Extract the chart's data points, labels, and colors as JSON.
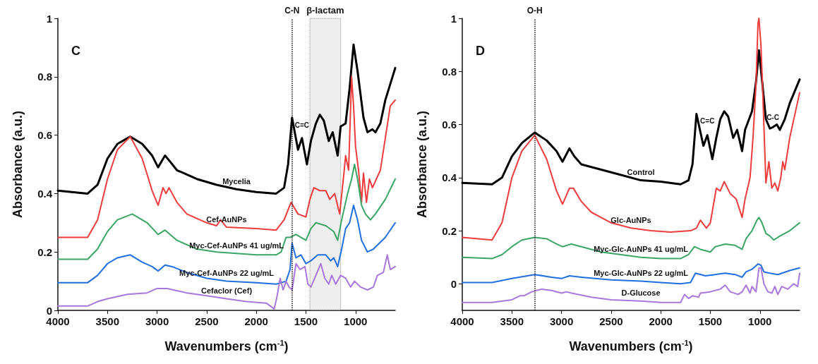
{
  "chart_data": [
    {
      "type": "line",
      "title": "C",
      "xlabel": "Wavenumbers (cm$^{-1}$)",
      "ylabel": "Absorbance (a.u.)",
      "xlim": [
        4000,
        600
      ],
      "xticks": [
        4000,
        3500,
        3000,
        2500,
        2000,
        1500,
        1000
      ],
      "ylim": [
        0,
        1
      ],
      "yticks": [
        0,
        0.2,
        0.4,
        0.6,
        0.8,
        1
      ],
      "grid": false,
      "legend": false,
      "marker": "none",
      "line_style": "solid",
      "ref_lines": [
        {
          "axis": "x",
          "value": 1640,
          "label": "C-N",
          "line_style": "dotted"
        }
      ],
      "bands": [
        {
          "axis": "x",
          "from": 1460,
          "to": 1150,
          "label": "β-lactam",
          "color": "#d9d9d9"
        }
      ],
      "annotations": [
        {
          "text": "C=C",
          "x": 1540,
          "y": 0.6
        }
      ],
      "series": [
        {
          "name": "Mycelia",
          "color": "#000000",
          "x": [
            4000,
            3700,
            3600,
            3500,
            3400,
            3270,
            3150,
            3050,
            2990,
            2920,
            2870,
            2800,
            2600,
            2400,
            2200,
            2000,
            1800,
            1720,
            1680,
            1640,
            1580,
            1540,
            1490,
            1450,
            1400,
            1360,
            1320,
            1270,
            1230,
            1180,
            1150,
            1100,
            1060,
            1020,
            980,
            920,
            880,
            830,
            800,
            750,
            700,
            600
          ],
          "values": [
            0.41,
            0.4,
            0.43,
            0.52,
            0.57,
            0.595,
            0.57,
            0.53,
            0.49,
            0.53,
            0.51,
            0.48,
            0.45,
            0.43,
            0.415,
            0.405,
            0.4,
            0.42,
            0.5,
            0.66,
            0.55,
            0.59,
            0.5,
            0.58,
            0.64,
            0.67,
            0.65,
            0.58,
            0.61,
            0.53,
            0.63,
            0.64,
            0.76,
            0.91,
            0.82,
            0.66,
            0.61,
            0.62,
            0.61,
            0.64,
            0.72,
            0.83
          ]
        },
        {
          "name": "Cef-AuNPs",
          "color": "#ee3b3b",
          "x": [
            4000,
            3700,
            3600,
            3500,
            3400,
            3270,
            3150,
            3050,
            2990,
            2940,
            2910,
            2880,
            2800,
            2700,
            2500,
            2400,
            2360,
            2300,
            2000,
            1800,
            1720,
            1650,
            1580,
            1500,
            1460,
            1420,
            1360,
            1300,
            1260,
            1210,
            1160,
            1120,
            1100,
            1070,
            1040,
            1020,
            1000,
            970,
            940,
            920,
            890,
            860,
            830,
            750,
            650,
            600
          ],
          "values": [
            0.25,
            0.25,
            0.31,
            0.45,
            0.55,
            0.595,
            0.52,
            0.41,
            0.36,
            0.42,
            0.4,
            0.42,
            0.37,
            0.33,
            0.3,
            0.29,
            0.31,
            0.285,
            0.28,
            0.275,
            0.31,
            0.37,
            0.33,
            0.32,
            0.38,
            0.42,
            0.41,
            0.41,
            0.38,
            0.4,
            0.33,
            0.46,
            0.53,
            0.48,
            0.8,
            0.7,
            0.56,
            0.48,
            0.37,
            0.47,
            0.37,
            0.45,
            0.42,
            0.48,
            0.7,
            0.72
          ]
        },
        {
          "name": "Myc-Cef-AuNPs 41 ug/mL",
          "color": "#3aa564",
          "x": [
            4000,
            3700,
            3600,
            3500,
            3400,
            3250,
            3100,
            2990,
            2920,
            2800,
            2600,
            2400,
            2200,
            2000,
            1800,
            1750,
            1700,
            1660,
            1600,
            1500,
            1450,
            1400,
            1300,
            1220,
            1180,
            1140,
            1080,
            1040,
            1010,
            980,
            940,
            900,
            850,
            800,
            700,
            600
          ],
          "values": [
            0.175,
            0.175,
            0.21,
            0.27,
            0.31,
            0.33,
            0.3,
            0.26,
            0.275,
            0.24,
            0.21,
            0.2,
            0.195,
            0.19,
            0.19,
            0.2,
            0.25,
            0.25,
            0.26,
            0.24,
            0.28,
            0.3,
            0.29,
            0.27,
            0.24,
            0.31,
            0.4,
            0.45,
            0.5,
            0.45,
            0.36,
            0.33,
            0.31,
            0.33,
            0.38,
            0.45
          ]
        },
        {
          "name": "Myc-Cef-AuNPs 22 ug/mL",
          "color": "#1f6fe0",
          "x": [
            4000,
            3700,
            3600,
            3500,
            3400,
            3270,
            3150,
            3050,
            2990,
            2920,
            2850,
            2700,
            2500,
            2300,
            2000,
            1800,
            1700,
            1660,
            1640,
            1600,
            1550,
            1500,
            1450,
            1380,
            1300,
            1250,
            1220,
            1180,
            1140,
            1100,
            1060,
            1020,
            980,
            940,
            880,
            820,
            700,
            600
          ],
          "values": [
            0.095,
            0.095,
            0.12,
            0.16,
            0.18,
            0.19,
            0.165,
            0.15,
            0.135,
            0.155,
            0.15,
            0.13,
            0.11,
            0.1,
            0.095,
            0.09,
            0.1,
            0.14,
            0.23,
            0.18,
            0.19,
            0.16,
            0.17,
            0.19,
            0.19,
            0.17,
            0.18,
            0.15,
            0.21,
            0.28,
            0.3,
            0.36,
            0.31,
            0.24,
            0.2,
            0.21,
            0.25,
            0.3
          ]
        },
        {
          "name": "Cefaclor (Cef)",
          "color": "#a777dd",
          "x": [
            4000,
            3700,
            3600,
            3500,
            3300,
            3100,
            3000,
            2900,
            2700,
            2500,
            2300,
            2100,
            1900,
            1820,
            1790,
            1760,
            1730,
            1700,
            1670,
            1640,
            1600,
            1560,
            1510,
            1480,
            1450,
            1400,
            1350,
            1310,
            1270,
            1240,
            1200,
            1150,
            1100,
            1050,
            1010,
            950,
            880,
            820,
            780,
            720,
            680,
            650,
            600
          ],
          "values": [
            0.015,
            0.015,
            0.03,
            0.04,
            0.055,
            0.06,
            0.075,
            0.075,
            0.06,
            0.05,
            0.04,
            0.03,
            0.025,
            0.005,
            0.05,
            0.11,
            0.07,
            0.1,
            0.08,
            0.07,
            0.16,
            0.14,
            0.15,
            0.09,
            0.08,
            0.12,
            0.16,
            0.11,
            0.09,
            0.12,
            0.09,
            0.12,
            0.11,
            0.08,
            0.1,
            0.08,
            0.07,
            0.08,
            0.12,
            0.13,
            0.19,
            0.14,
            0.15
          ]
        }
      ]
    },
    {
      "type": "line",
      "title": "D",
      "xlabel": "Wavenumbers (cm$^{-1}$)",
      "ylabel": "Absorbance (a.u.)",
      "xlim": [
        4000,
        600
      ],
      "xticks": [
        4000,
        3500,
        3000,
        2500,
        2000,
        1500,
        1000
      ],
      "ylim": [
        -0.1,
        1
      ],
      "yticks": [
        0,
        0.2,
        0.4,
        0.6,
        0.8,
        1
      ],
      "grid": false,
      "legend": false,
      "marker": "none",
      "line_style": "solid",
      "ref_lines": [
        {
          "axis": "x",
          "value": 3270,
          "label": "O-H",
          "line_style": "dotted"
        }
      ],
      "annotations": [
        {
          "text": "C=C",
          "x": 1530,
          "y": 0.575
        },
        {
          "text": "C-C",
          "x": 870,
          "y": 0.59
        }
      ],
      "series": [
        {
          "name": "Control",
          "color": "#000000",
          "x": [
            4000,
            3700,
            3600,
            3500,
            3400,
            3270,
            3150,
            3050,
            2990,
            2920,
            2870,
            2800,
            2600,
            2400,
            2200,
            2000,
            1800,
            1720,
            1680,
            1640,
            1570,
            1530,
            1480,
            1440,
            1400,
            1360,
            1320,
            1270,
            1230,
            1180,
            1150,
            1080,
            1040,
            1010,
            980,
            940,
            900,
            870,
            830,
            800,
            750,
            700,
            600
          ],
          "values": [
            0.38,
            0.375,
            0.4,
            0.48,
            0.53,
            0.57,
            0.54,
            0.5,
            0.46,
            0.51,
            0.48,
            0.45,
            0.43,
            0.41,
            0.39,
            0.385,
            0.375,
            0.39,
            0.45,
            0.64,
            0.52,
            0.56,
            0.47,
            0.55,
            0.62,
            0.65,
            0.63,
            0.55,
            0.58,
            0.5,
            0.58,
            0.65,
            0.76,
            0.88,
            0.77,
            0.62,
            0.585,
            0.59,
            0.6,
            0.58,
            0.62,
            0.68,
            0.77
          ]
        },
        {
          "name": "Glc-AuNPs",
          "color": "#ee3b3b",
          "x": [
            4000,
            3700,
            3600,
            3500,
            3400,
            3270,
            3150,
            3050,
            2990,
            2920,
            2880,
            2800,
            2700,
            2600,
            2500,
            2300,
            2100,
            1900,
            1700,
            1640,
            1600,
            1540,
            1500,
            1440,
            1400,
            1360,
            1300,
            1240,
            1180,
            1150,
            1100,
            1070,
            1040,
            1020,
            1010,
            990,
            970,
            940,
            910,
            880,
            850,
            820,
            790,
            770,
            750,
            700,
            600
          ],
          "values": [
            0.175,
            0.165,
            0.23,
            0.4,
            0.5,
            0.56,
            0.47,
            0.35,
            0.3,
            0.36,
            0.36,
            0.31,
            0.27,
            0.25,
            0.23,
            0.21,
            0.2,
            0.195,
            0.2,
            0.21,
            0.24,
            0.21,
            0.23,
            0.36,
            0.35,
            0.385,
            0.34,
            0.32,
            0.25,
            0.32,
            0.4,
            0.55,
            0.75,
            0.98,
            1.0,
            0.9,
            0.7,
            0.38,
            0.46,
            0.36,
            0.38,
            0.35,
            0.4,
            0.46,
            0.43,
            0.55,
            0.72
          ]
        },
        {
          "name": "Myc-Glc-AuNPs 41 ug/mL",
          "color": "#3aa564",
          "x": [
            4000,
            3700,
            3600,
            3500,
            3400,
            3270,
            3150,
            3050,
            2990,
            2900,
            2800,
            2600,
            2400,
            2200,
            2000,
            1800,
            1720,
            1660,
            1600,
            1500,
            1450,
            1350,
            1250,
            1180,
            1140,
            1080,
            1030,
            1010,
            980,
            940,
            900,
            860,
            800,
            700,
            600
          ],
          "values": [
            0.1,
            0.095,
            0.11,
            0.14,
            0.165,
            0.175,
            0.17,
            0.15,
            0.14,
            0.15,
            0.14,
            0.12,
            0.11,
            0.1,
            0.095,
            0.095,
            0.11,
            0.14,
            0.13,
            0.12,
            0.14,
            0.15,
            0.145,
            0.13,
            0.17,
            0.2,
            0.24,
            0.25,
            0.23,
            0.19,
            0.18,
            0.165,
            0.18,
            0.2,
            0.23
          ]
        },
        {
          "name": "Myc-Glc-AuNPs 22 ug/mL",
          "color": "#1f6fe0",
          "x": [
            4000,
            3700,
            3500,
            3270,
            3100,
            3000,
            2920,
            2800,
            2500,
            2200,
            2000,
            1800,
            1700,
            1650,
            1550,
            1450,
            1350,
            1250,
            1180,
            1140,
            1080,
            1020,
            990,
            960,
            900,
            820,
            700,
            600
          ],
          "values": [
            0.005,
            0.005,
            0.02,
            0.035,
            0.025,
            0.02,
            0.03,
            0.025,
            0.015,
            0.01,
            0.005,
            0.0,
            0.005,
            0.04,
            0.03,
            0.035,
            0.04,
            0.035,
            0.025,
            0.045,
            0.055,
            0.075,
            0.07,
            0.045,
            0.04,
            0.035,
            0.05,
            0.06
          ]
        },
        {
          "name": "D-Glucose",
          "color": "#a777dd",
          "x": [
            4000,
            3700,
            3500,
            3420,
            3380,
            3300,
            3200,
            3100,
            3000,
            2950,
            2900,
            2700,
            2500,
            2200,
            2000,
            1800,
            1760,
            1720,
            1680,
            1620,
            1600,
            1500,
            1400,
            1350,
            1300,
            1220,
            1180,
            1140,
            1100,
            1080,
            1040,
            1010,
            990,
            960,
            920,
            880,
            850,
            820,
            780,
            720,
            660,
            620,
            600
          ],
          "values": [
            -0.07,
            -0.07,
            -0.06,
            -0.045,
            -0.045,
            -0.03,
            -0.02,
            -0.025,
            -0.035,
            -0.03,
            -0.035,
            -0.05,
            -0.06,
            -0.065,
            -0.07,
            -0.07,
            -0.04,
            -0.055,
            -0.045,
            -0.05,
            -0.035,
            -0.03,
            -0.02,
            -0.005,
            -0.03,
            -0.04,
            -0.03,
            -0.005,
            -0.035,
            -0.01,
            -0.03,
            0.06,
            0.06,
            0.0,
            -0.03,
            -0.035,
            -0.01,
            -0.04,
            -0.01,
            -0.02,
            0.0,
            -0.01,
            0.04
          ]
        }
      ]
    }
  ]
}
